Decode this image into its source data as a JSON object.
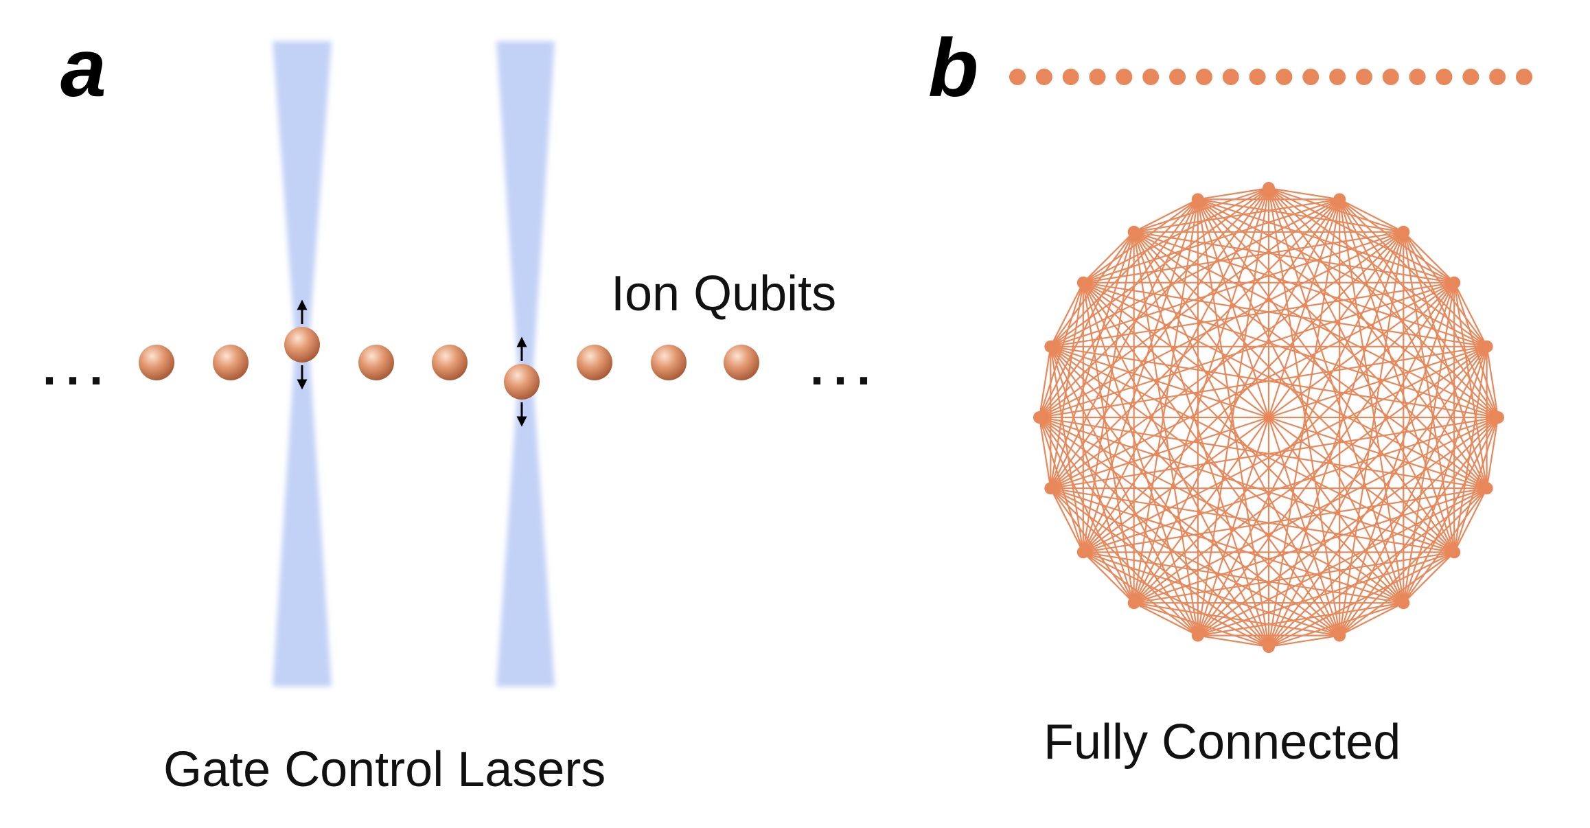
{
  "panels": [
    {
      "letter": "a",
      "caption": "Gate Control Lasers",
      "label": "Ion Qubits",
      "ellipsis_left": "...",
      "ellipsis_right": "..."
    },
    {
      "letter": "b",
      "caption": "Fully Connected"
    }
  ],
  "colors": {
    "laser_beam": "#c2d1f6",
    "ion": "#e0916a",
    "chain": "#e8875a",
    "graph": "#e8875a",
    "arrow": "#000000"
  },
  "ion_count": 9,
  "displaced_ions": [
    3,
    6
  ],
  "top_chain_count": 20,
  "graph_node_count": 20
}
